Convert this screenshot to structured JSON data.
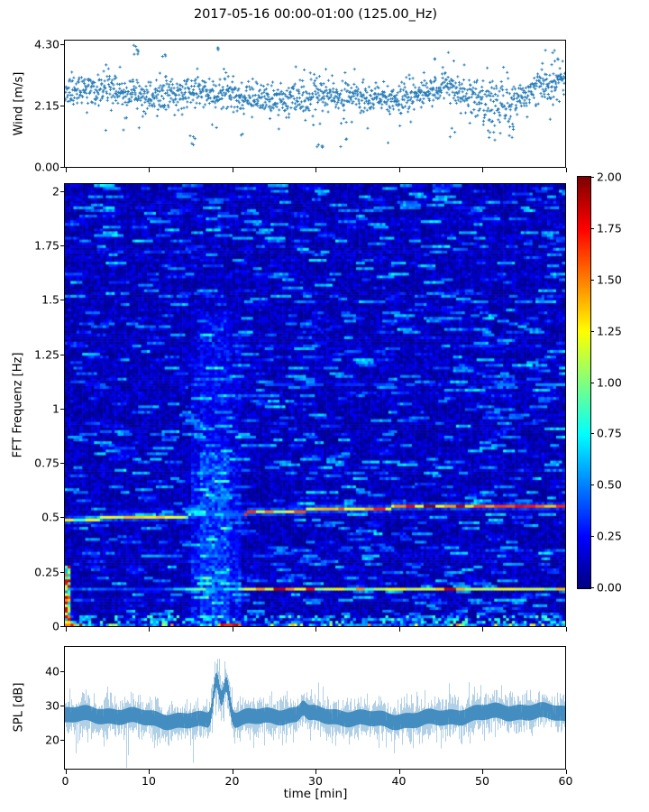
{
  "title": "2017-05-16 00:00-01:00 (125.00_Hz)",
  "colors": {
    "series_blue": "#1f77b4",
    "axis": "#000000",
    "background": "#ffffff"
  },
  "chart_data": [
    {
      "id": "wind",
      "type": "scatter",
      "ylabel": "Wind [m/s]",
      "marker": "+",
      "color": "#1f77b4",
      "ylim": [
        0,
        4.43
      ],
      "xlim": [
        0,
        60
      ],
      "yticks": [
        0.0,
        2.15,
        4.3
      ],
      "ytick_labels": [
        "0.00",
        "2.15",
        "4.30"
      ],
      "n_points": 1500,
      "mean": 2.52,
      "std": 0.27,
      "min_seen": 0.6,
      "max_seen": 4.3,
      "low_clusters": [
        {
          "t": 15.5,
          "spread": 0.35,
          "n": 4,
          "vmin": 0.75,
          "vmax": 1.3
        },
        {
          "t": 30.7,
          "spread": 0.5,
          "n": 5,
          "vmin": 0.62,
          "vmax": 1.25
        },
        {
          "t": 33.8,
          "spread": 0.2,
          "n": 2,
          "vmin": 0.95,
          "vmax": 1.2
        },
        {
          "t": 46.5,
          "spread": 0.4,
          "n": 3,
          "vmin": 0.85,
          "vmax": 1.4
        },
        {
          "t": 52.5,
          "spread": 1.8,
          "n": 9,
          "vmin": 1.0,
          "vmax": 1.7
        },
        {
          "t": 21.3,
          "spread": 0.2,
          "n": 2,
          "vmin": 1.1,
          "vmax": 1.4
        }
      ],
      "high_clusters": [
        {
          "t": 8.5,
          "spread": 0.3,
          "n": 7,
          "vmin": 3.9,
          "vmax": 4.3
        },
        {
          "t": 18.45,
          "spread": 0.2,
          "n": 4,
          "vmin": 4.0,
          "vmax": 4.27
        },
        {
          "t": 11.9,
          "spread": 0.25,
          "n": 3,
          "vmin": 3.7,
          "vmax": 3.95
        },
        {
          "t": 58.2,
          "spread": 1.2,
          "n": 8,
          "vmin": 3.4,
          "vmax": 4.2
        },
        {
          "t": 44.6,
          "spread": 0.3,
          "n": 2,
          "vmin": 3.6,
          "vmax": 3.8
        }
      ],
      "dip_region": {
        "t_start": 48,
        "t_end": 54.5,
        "mean_shift": -0.22,
        "std_mult": 1.5
      }
    },
    {
      "id": "spectrogram",
      "type": "heatmap",
      "ylabel": "FFT Frequenz [Hz]",
      "ylim": [
        0,
        2.032
      ],
      "xlim": [
        0,
        60
      ],
      "yticks": [
        0,
        0.25,
        0.5,
        0.75,
        1,
        1.25,
        1.5,
        1.75,
        2
      ],
      "ytick_labels": [
        "0",
        "0.25",
        "0.5",
        "0.75",
        "1",
        "1.25",
        "1.5",
        "1.75",
        "2"
      ],
      "colormap": "jet",
      "clim": [
        0,
        2
      ],
      "grid": {
        "cols": 170,
        "rows": 160
      },
      "background": {
        "base_level": 0.13,
        "streak_prob": 0.045,
        "streak_boost_max": 0.52
      },
      "vertical_band": {
        "t_start": 15.2,
        "t_end": 21.3,
        "t_core_start": 16.2,
        "t_core_end": 19.7,
        "freq_max": 1.45,
        "boost_core": 0.26,
        "boost_edge": 0.12
      },
      "spectral_lines": [
        {
          "name": "line-0.5Hz",
          "freq_start": 0.49,
          "freq_end": 0.555,
          "drift": "rising-sigmoid",
          "intensity_left": 1.1,
          "intensity_right": 1.8,
          "disrupted_t": [
            15.2,
            21.5
          ],
          "max_value": 2.0
        },
        {
          "name": "line-0.17Hz",
          "freq_start": 0.167,
          "freq_end": 0.176,
          "drift": "slight-rise",
          "intensity_left": 0.35,
          "intensity_right": 1.3,
          "hot_segments_value": 1.95
        },
        {
          "name": "line-1.11Hz",
          "freq_start": 1.115,
          "freq_end": 1.115,
          "drift": "none",
          "t_visible_from": 24,
          "intensity": 0.55
        },
        {
          "name": "line-0.36Hz",
          "freq_start": 0.355,
          "freq_end": 0.355,
          "drift": "none",
          "t_visible_from": 35,
          "intensity": 0.45
        }
      ],
      "bottom_band": {
        "freq_max": 0.045,
        "bright_left_t_max": 2.5,
        "red_segment_t": [
          18.6,
          21.3
        ],
        "typical_value": 1.2
      },
      "left_edge_column": {
        "t_max": 0.75,
        "freq_max": 0.28,
        "value_range": [
          0.5,
          1.9
        ]
      },
      "colorbar": {
        "clim": [
          0,
          2
        ],
        "ticks": [
          0,
          0.25,
          0.5,
          0.75,
          1,
          1.25,
          1.5,
          1.75,
          2
        ],
        "tick_labels": [
          "0.00",
          "0.25",
          "0.50",
          "0.75",
          "1.00",
          "1.25",
          "1.50",
          "1.75",
          "2.00"
        ],
        "position": "right"
      }
    },
    {
      "id": "spl",
      "type": "line",
      "ylabel": "SPL [dB]",
      "xlabel": "time [min]",
      "color": "#1f77b4",
      "ylim": [
        11.5,
        47
      ],
      "xlim": [
        0,
        60
      ],
      "yticks": [
        20,
        30,
        40
      ],
      "ytick_labels": [
        "20",
        "30",
        "40"
      ],
      "xticks": [
        0,
        10,
        20,
        30,
        40,
        50,
        60
      ],
      "xtick_labels": [
        "0",
        "10",
        "20",
        "30",
        "40",
        "50",
        "60"
      ],
      "baseline_mean": 26.3,
      "noise_halfwidth": 4.3,
      "trend_end_shift": 1.3,
      "peak": {
        "t_start": 17.2,
        "t_peak1": 18.12,
        "peak1_mean": 38,
        "t_valley": 18.7,
        "t_peak2": 19.3,
        "peak2_mean": 36.5,
        "t_end": 20.8,
        "max_spike": 43.5
      },
      "deep_lows": [
        {
          "t": 1.3,
          "v": 16
        },
        {
          "t": 10.7,
          "v": 17.5
        },
        {
          "t": 15.35,
          "v": 13.2
        },
        {
          "t": 22.6,
          "v": 17.5
        }
      ]
    }
  ]
}
